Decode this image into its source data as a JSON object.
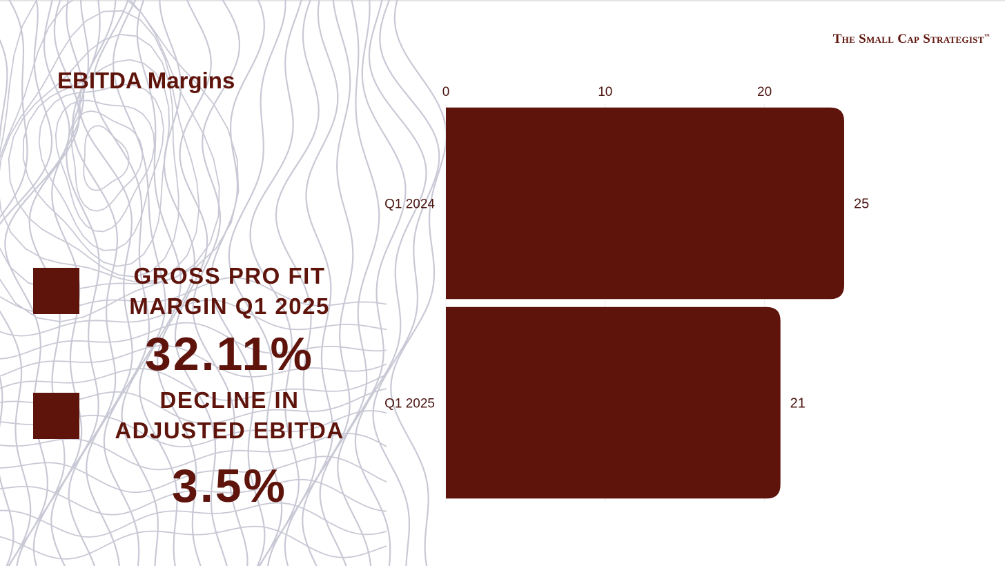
{
  "brand": {
    "name": "The Small Cap Strategist",
    "mark": "™"
  },
  "colors": {
    "accent": "#5e130b",
    "contour": "#c9c9d6",
    "background": "#ffffff"
  },
  "stats": [
    {
      "label_line1": "GROSS PRO FIT",
      "label_line2": "MARGIN Q1 2025",
      "value": "32.11%"
    },
    {
      "label_line1": "DECLINE IN",
      "label_line2": "ADJUSTED EBITDA",
      "value": "3.5%"
    }
  ],
  "chart_data": {
    "type": "bar",
    "orientation": "horizontal",
    "title": "EBITDA Margins",
    "categories": [
      "Q1 2024",
      "Q1 2025"
    ],
    "values": [
      25,
      21
    ],
    "data_labels": [
      "25",
      "21"
    ],
    "xticks": [
      0,
      10,
      20
    ],
    "xtick_labels": [
      "0",
      "10",
      "20"
    ],
    "xlim": [
      0,
      25
    ],
    "grid": true,
    "legend": "none",
    "bar_color": "#5e130b"
  }
}
